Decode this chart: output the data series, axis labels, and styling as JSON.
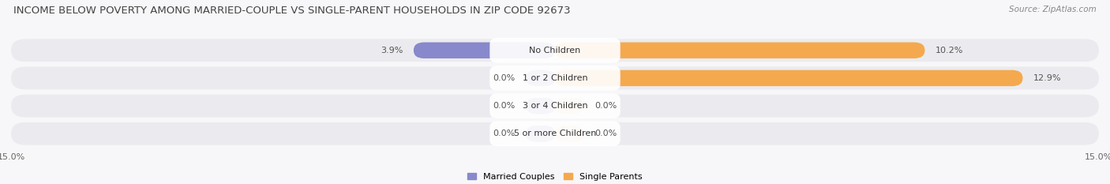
{
  "title": "INCOME BELOW POVERTY AMONG MARRIED-COUPLE VS SINGLE-PARENT HOUSEHOLDS IN ZIP CODE 92673",
  "source": "Source: ZipAtlas.com",
  "categories": [
    "No Children",
    "1 or 2 Children",
    "3 or 4 Children",
    "5 or more Children"
  ],
  "married_values": [
    3.9,
    0.0,
    0.0,
    0.0
  ],
  "single_values": [
    10.2,
    12.9,
    0.0,
    0.0
  ],
  "xlim": 15.0,
  "married_color": "#8888cc",
  "single_color": "#f5a94e",
  "single_color_zero": "#f5c8a0",
  "bg_color": "#f7f7f9",
  "row_bg_color": "#ebebef",
  "title_fontsize": 9.5,
  "label_fontsize": 8,
  "tick_fontsize": 8,
  "source_fontsize": 7.5,
  "min_bar_width": 0.8
}
